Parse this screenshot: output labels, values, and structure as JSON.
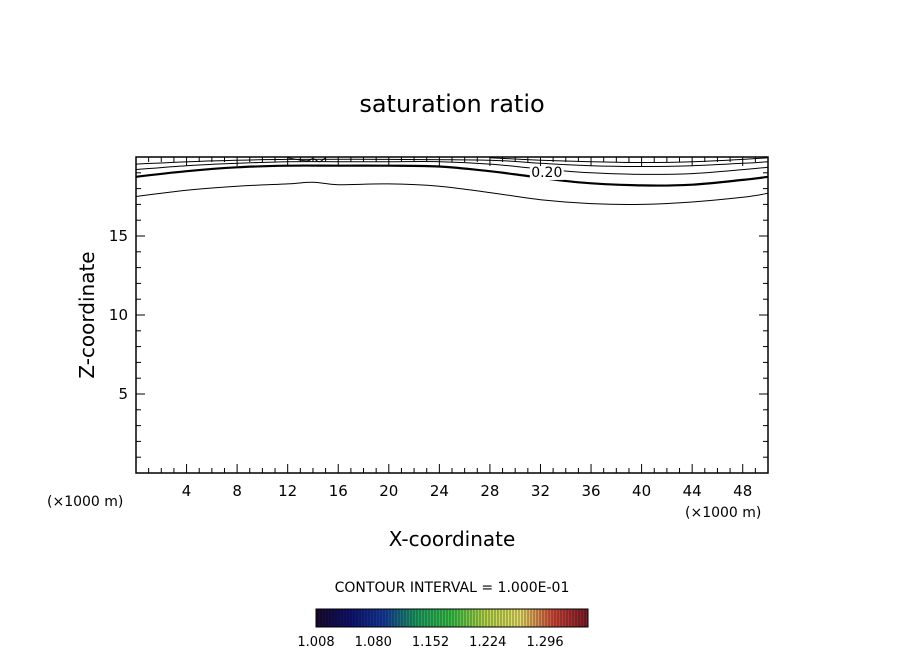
{
  "chart_data": {
    "type": "contour",
    "title": "saturation ratio",
    "xlabel": "X-coordinate",
    "ylabel": "Z-coordinate",
    "x_unit": "(×1000 m)",
    "y_unit": "(×1000 m)",
    "xlim": [
      0,
      50
    ],
    "ylim": [
      0,
      20
    ],
    "x_ticks": [
      4,
      8,
      12,
      16,
      20,
      24,
      28,
      32,
      36,
      40,
      44,
      48
    ],
    "y_ticks": [
      5,
      10,
      15
    ],
    "contour_interval_text": "CONTOUR INTERVAL = 1.000E-01",
    "contour_labels": [
      {
        "text": "0.20",
        "x": 32.5,
        "z": 18.8
      }
    ],
    "contours": [
      {
        "bold": false,
        "points": [
          [
            0,
            17.5
          ],
          [
            4,
            17.9
          ],
          [
            8,
            18.15
          ],
          [
            12,
            18.3
          ],
          [
            14,
            18.4
          ],
          [
            16,
            18.25
          ],
          [
            20,
            18.3
          ],
          [
            24,
            18.15
          ],
          [
            28,
            17.75
          ],
          [
            32,
            17.3
          ],
          [
            36,
            17.05
          ],
          [
            40,
            17.0
          ],
          [
            44,
            17.15
          ],
          [
            48,
            17.45
          ],
          [
            50,
            17.7
          ]
        ]
      },
      {
        "bold": true,
        "points": [
          [
            0,
            18.75
          ],
          [
            4,
            19.1
          ],
          [
            8,
            19.35
          ],
          [
            12,
            19.45
          ],
          [
            16,
            19.45
          ],
          [
            20,
            19.45
          ],
          [
            24,
            19.4
          ],
          [
            28,
            19.1
          ],
          [
            30,
            18.9
          ],
          [
            35,
            18.4
          ],
          [
            40,
            18.2
          ],
          [
            44,
            18.25
          ],
          [
            48,
            18.55
          ],
          [
            50,
            18.75
          ]
        ]
      },
      {
        "bold": false,
        "points": [
          [
            0,
            19.2
          ],
          [
            4,
            19.45
          ],
          [
            8,
            19.6
          ],
          [
            12,
            19.7
          ],
          [
            16,
            19.7
          ],
          [
            20,
            19.7
          ],
          [
            24,
            19.7
          ],
          [
            28,
            19.55
          ],
          [
            32,
            19.25
          ],
          [
            36,
            19.0
          ],
          [
            40,
            18.9
          ],
          [
            44,
            18.95
          ],
          [
            48,
            19.2
          ],
          [
            50,
            19.35
          ]
        ]
      },
      {
        "bold": false,
        "points": [
          [
            0,
            19.55
          ],
          [
            6,
            19.75
          ],
          [
            12,
            19.85
          ],
          [
            20,
            19.85
          ],
          [
            28,
            19.8
          ],
          [
            32,
            19.6
          ],
          [
            36,
            19.45
          ],
          [
            40,
            19.4
          ],
          [
            44,
            19.45
          ],
          [
            48,
            19.6
          ],
          [
            50,
            19.7
          ]
        ]
      },
      {
        "bold": false,
        "points": [
          [
            28,
            19.95
          ],
          [
            32,
            19.8
          ],
          [
            36,
            19.7
          ],
          [
            40,
            19.65
          ],
          [
            44,
            19.7
          ],
          [
            48,
            19.85
          ],
          [
            50,
            19.95
          ]
        ]
      },
      {
        "bold": false,
        "points": [
          [
            12,
            19.95
          ],
          [
            13.5,
            19.75
          ],
          [
            14,
            19.9
          ],
          [
            14.5,
            19.7
          ],
          [
            15,
            19.95
          ]
        ]
      }
    ],
    "colorbar": {
      "tick_labels": [
        "1.008",
        "1.080",
        "1.152",
        "1.224",
        "1.296"
      ],
      "range": [
        1.008,
        1.35
      ],
      "colors": [
        "#1b0b2e",
        "#10126e",
        "#163c9e",
        "#20a060",
        "#3cc24a",
        "#b8d84c",
        "#e8e06a",
        "#d0483a",
        "#7a1a28"
      ]
    }
  }
}
